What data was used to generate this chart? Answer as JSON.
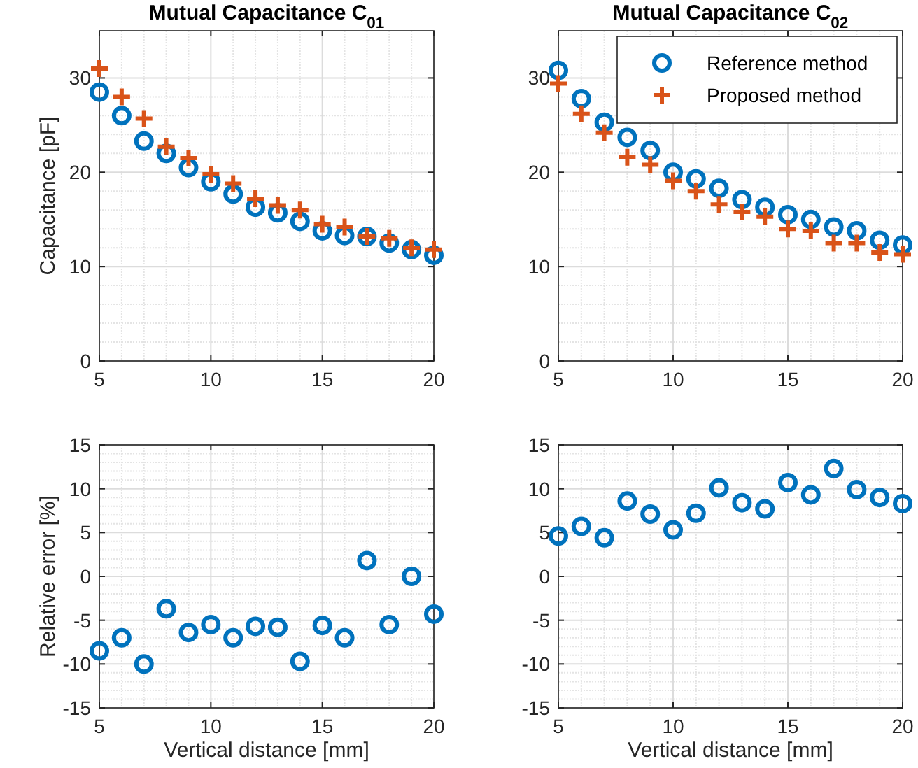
{
  "chart_data": [
    {
      "type": "scatter",
      "title": "Mutual Capacitance C$_{01}$",
      "ylabel": "Capacitance [pF]",
      "x": [
        5,
        6,
        7,
        8,
        9,
        10,
        11,
        12,
        13,
        14,
        15,
        16,
        17,
        18,
        19,
        20
      ],
      "xlim": [
        5,
        20
      ],
      "xticks": [
        5,
        10,
        15,
        20
      ],
      "ylim": [
        0,
        35
      ],
      "yticks": [
        0,
        10,
        20,
        30
      ],
      "grid": true,
      "legend": false,
      "series": [
        {
          "color": "#0072bd",
          "marker": "circle",
          "values": [
            28.5,
            26,
            23.3,
            22,
            20.5,
            19,
            17.7,
            16.3,
            15.7,
            14.8,
            13.8,
            13.3,
            13.2,
            12.5,
            11.8,
            11.2
          ]
        },
        {
          "color": "#d95319",
          "marker": "cross",
          "values": [
            31,
            28,
            25.7,
            22.7,
            21.5,
            19.8,
            18.8,
            17.2,
            16.5,
            16,
            14.5,
            14.2,
            13.2,
            13,
            12,
            11.8
          ]
        }
      ]
    },
    {
      "type": "scatter",
      "title": "Mutual Capacitance C$_{02}$",
      "x": [
        5,
        6,
        7,
        8,
        9,
        10,
        11,
        12,
        13,
        14,
        15,
        16,
        17,
        18,
        19,
        20
      ],
      "xlim": [
        5,
        20
      ],
      "xticks": [
        5,
        10,
        15,
        20
      ],
      "ylim": [
        0,
        35
      ],
      "yticks": [
        0,
        10,
        20,
        30
      ],
      "grid": true,
      "legend": "top right",
      "series": [
        {
          "name": "Reference method",
          "color": "#0072bd",
          "marker": "circle",
          "values": [
            30.8,
            27.8,
            25.3,
            23.7,
            22.3,
            20,
            19.3,
            18.3,
            17.1,
            16.3,
            15.5,
            15,
            14.2,
            13.8,
            12.8,
            12.3
          ]
        },
        {
          "name": "Proposed method",
          "color": "#d95319",
          "marker": "cross",
          "values": [
            29.4,
            26.2,
            24.2,
            21.6,
            20.8,
            19.1,
            18,
            16.6,
            15.8,
            15.3,
            14,
            13.8,
            12.5,
            12.5,
            11.5,
            11.3
          ]
        }
      ]
    },
    {
      "type": "scatter",
      "xlabel": "Vertical distance [mm]",
      "ylabel": "Relative error [%]",
      "x": [
        5,
        6,
        7,
        8,
        9,
        10,
        11,
        12,
        13,
        14,
        15,
        16,
        17,
        18,
        19,
        20
      ],
      "xlim": [
        5,
        20
      ],
      "xticks": [
        5,
        10,
        15,
        20
      ],
      "ylim": [
        -15,
        15
      ],
      "yticks": [
        -15,
        -10,
        -5,
        0,
        5,
        10,
        15
      ],
      "grid": true,
      "legend": false,
      "series": [
        {
          "color": "#0072bd",
          "marker": "circle",
          "values": [
            -8.5,
            -7,
            -10,
            -3.7,
            -6.4,
            -5.5,
            -7,
            -5.7,
            -5.8,
            -9.7,
            -5.6,
            -7,
            1.8,
            -5.5,
            0,
            -4.3
          ]
        }
      ]
    },
    {
      "type": "scatter",
      "xlabel": "Vertical distance [mm]",
      "x": [
        5,
        6,
        7,
        8,
        9,
        10,
        11,
        12,
        13,
        14,
        15,
        16,
        17,
        18,
        19,
        20
      ],
      "xlim": [
        5,
        20
      ],
      "xticks": [
        5,
        10,
        15,
        20
      ],
      "ylim": [
        -15,
        15
      ],
      "yticks": [
        -15,
        -10,
        -5,
        0,
        5,
        10,
        15
      ],
      "grid": true,
      "legend": false,
      "series": [
        {
          "color": "#0072bd",
          "marker": "circle",
          "values": [
            4.6,
            5.7,
            4.4,
            8.6,
            7.1,
            5.3,
            7.2,
            10.1,
            8.4,
            7.7,
            10.7,
            9.3,
            12.3,
            9.9,
            9,
            8.3
          ]
        }
      ]
    }
  ]
}
